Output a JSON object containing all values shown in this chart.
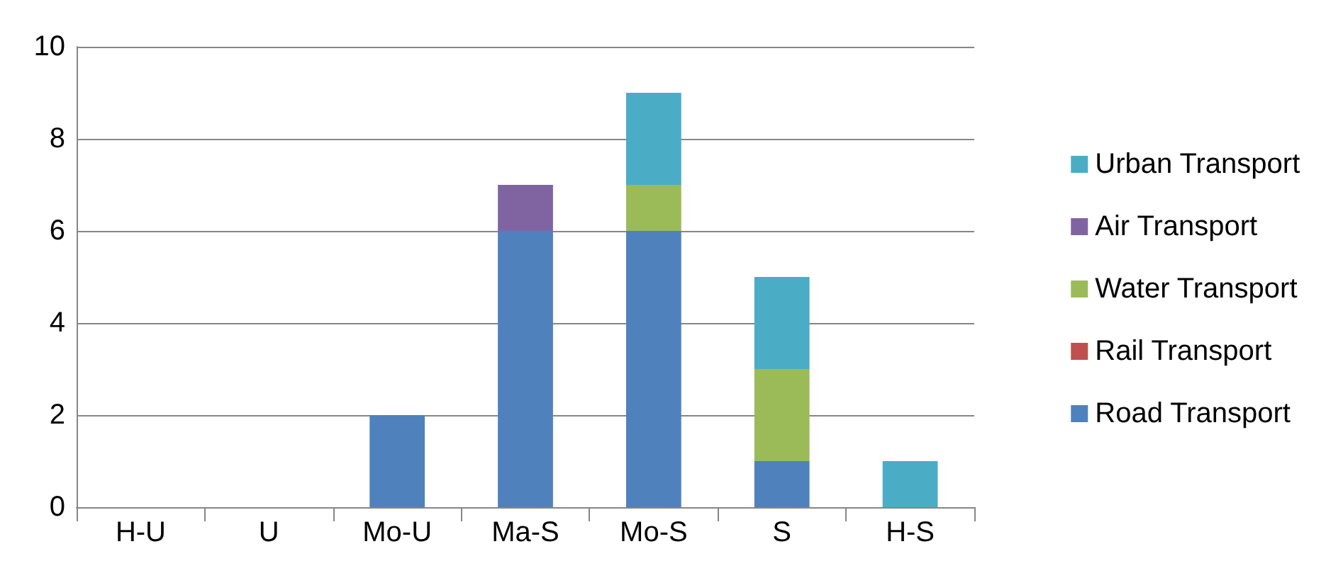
{
  "chart_data": {
    "type": "bar",
    "stacked": true,
    "categories": [
      "H-U",
      "U",
      "Mo-U",
      "Ma-S",
      "Mo-S",
      "S",
      "H-S"
    ],
    "series": [
      {
        "name": "Road Transport",
        "color": "#4f81bd",
        "values": [
          0,
          0,
          2,
          6,
          6,
          1,
          0
        ]
      },
      {
        "name": "Rail Transport",
        "color": "#c0504d",
        "values": [
          0,
          0,
          0,
          0,
          0,
          0,
          0
        ]
      },
      {
        "name": "Water Transport",
        "color": "#9bbb59",
        "values": [
          0,
          0,
          0,
          0,
          1,
          2,
          0
        ]
      },
      {
        "name": "Air Transport",
        "color": "#8064a2",
        "values": [
          0,
          0,
          0,
          1,
          0,
          0,
          0
        ]
      },
      {
        "name": "Urban Transport",
        "color": "#4bacc6",
        "values": [
          0,
          0,
          0,
          0,
          2,
          2,
          1
        ]
      }
    ],
    "ylim": [
      0,
      10
    ],
    "yticks": [
      0,
      2,
      4,
      6,
      8,
      10
    ],
    "grid": "y",
    "legend": "right"
  }
}
